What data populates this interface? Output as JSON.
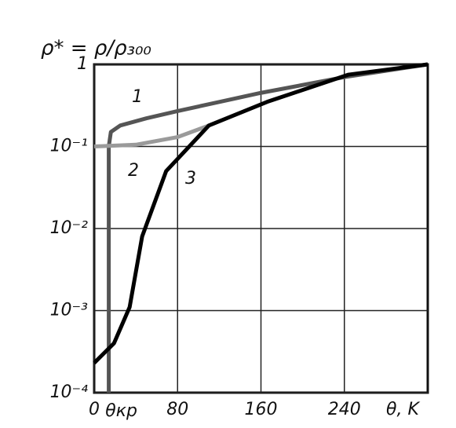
{
  "chart_data": {
    "type": "line",
    "title": "ρ* = ρ/ρ₃₀₀",
    "x_label": "θ, K",
    "critical_label": "θкр",
    "log_y": true,
    "grid": true,
    "xlim": [
      0,
      320
    ],
    "xticks": [
      0,
      80,
      160,
      240
    ],
    "ylim": [
      0.0001,
      1
    ],
    "yticks": [
      {
        "value": 0.0001,
        "label": "10⁻⁴"
      },
      {
        "value": 0.001,
        "label": "10⁻³"
      },
      {
        "value": 0.01,
        "label": "10⁻²"
      },
      {
        "value": 0.1,
        "label": "10⁻¹"
      },
      1
    ],
    "series": [
      {
        "name": "1",
        "color": "#555555",
        "x": [
          14,
          14,
          16,
          25,
          50,
          80,
          160,
          240,
          320
        ],
        "values": [
          0.0001,
          0.1,
          0.15,
          0.18,
          0.22,
          0.27,
          0.45,
          0.7,
          1
        ]
      },
      {
        "name": "2",
        "color": "#9a9a9a",
        "x": [
          0,
          40,
          80,
          110
        ],
        "values": [
          0.1,
          0.105,
          0.13,
          0.18
        ]
      },
      {
        "name": "3",
        "color": "#000000",
        "x": [
          0,
          19,
          34,
          46,
          69,
          110,
          166,
          244,
          320
        ],
        "values": [
          0.00023,
          0.0004,
          0.0011,
          0.008,
          0.05,
          0.18,
          0.35,
          0.75,
          1
        ]
      }
    ]
  }
}
